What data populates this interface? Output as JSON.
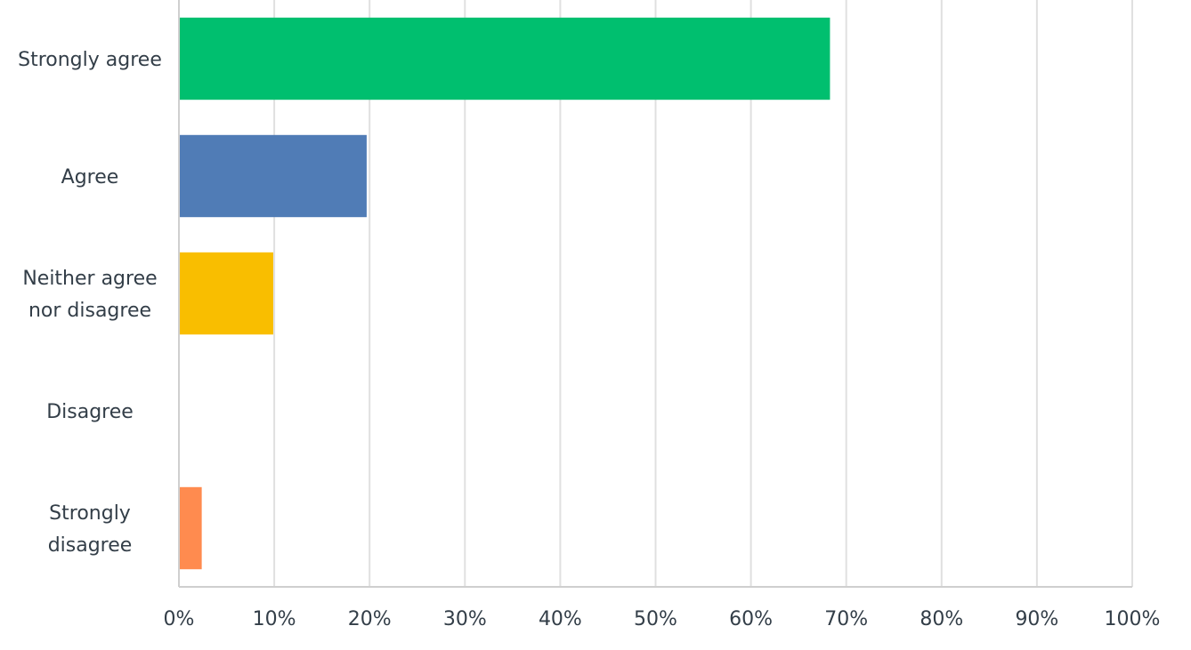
{
  "chart_data": {
    "type": "bar",
    "orientation": "horizontal",
    "categories": [
      "Strongly agree",
      "Agree",
      "Neither agree nor disagree",
      "Disagree",
      "Strongly disagree"
    ],
    "values": [
      68.2,
      19.6,
      9.8,
      0,
      2.3
    ],
    "colors": [
      "#00bf6f",
      "#507cb6",
      "#f9be00",
      "#6bc8cd",
      "#ff8b4f"
    ],
    "xlim": [
      0,
      100
    ],
    "xticks": [
      {
        "value": 0,
        "label": "0%"
      },
      {
        "value": 10,
        "label": "10%"
      },
      {
        "value": 20,
        "label": "20%"
      },
      {
        "value": 30,
        "label": "30%"
      },
      {
        "value": 40,
        "label": "40%"
      },
      {
        "value": 50,
        "label": "50%"
      },
      {
        "value": 60,
        "label": "60%"
      },
      {
        "value": 70,
        "label": "70%"
      },
      {
        "value": 80,
        "label": "80%"
      },
      {
        "value": 90,
        "label": "90%"
      },
      {
        "value": 100,
        "label": "100%"
      }
    ],
    "grid": true
  }
}
